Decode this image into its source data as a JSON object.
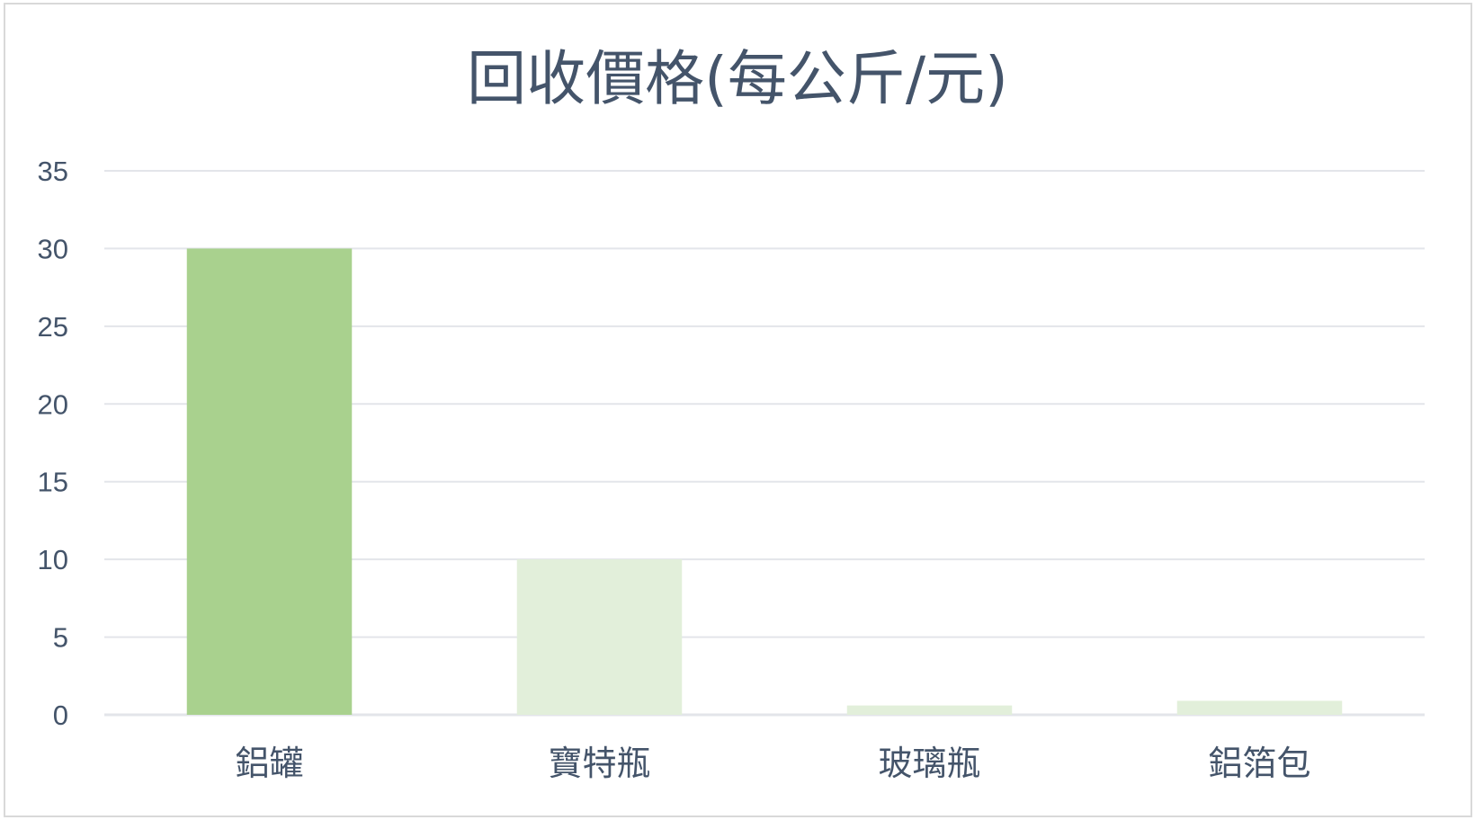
{
  "chart_data": {
    "type": "bar",
    "title": "回收價格(每公斤/元)",
    "xlabel": "",
    "ylabel": "",
    "categories": [
      "鋁罐",
      "寶特瓶",
      "玻璃瓶",
      "鋁箔包"
    ],
    "values": [
      30,
      10,
      0.6,
      0.9
    ],
    "ylim": [
      0,
      35
    ],
    "yticks": [
      0,
      5,
      10,
      15,
      20,
      25,
      30,
      35
    ],
    "grid": true,
    "legend": "none",
    "colors": {
      "highlight_bar": "#A9D18E",
      "other_bars": "#E2EFDA",
      "text": "#44546A",
      "grid": "#E3E5EA",
      "border": "#D9D9D9"
    }
  }
}
